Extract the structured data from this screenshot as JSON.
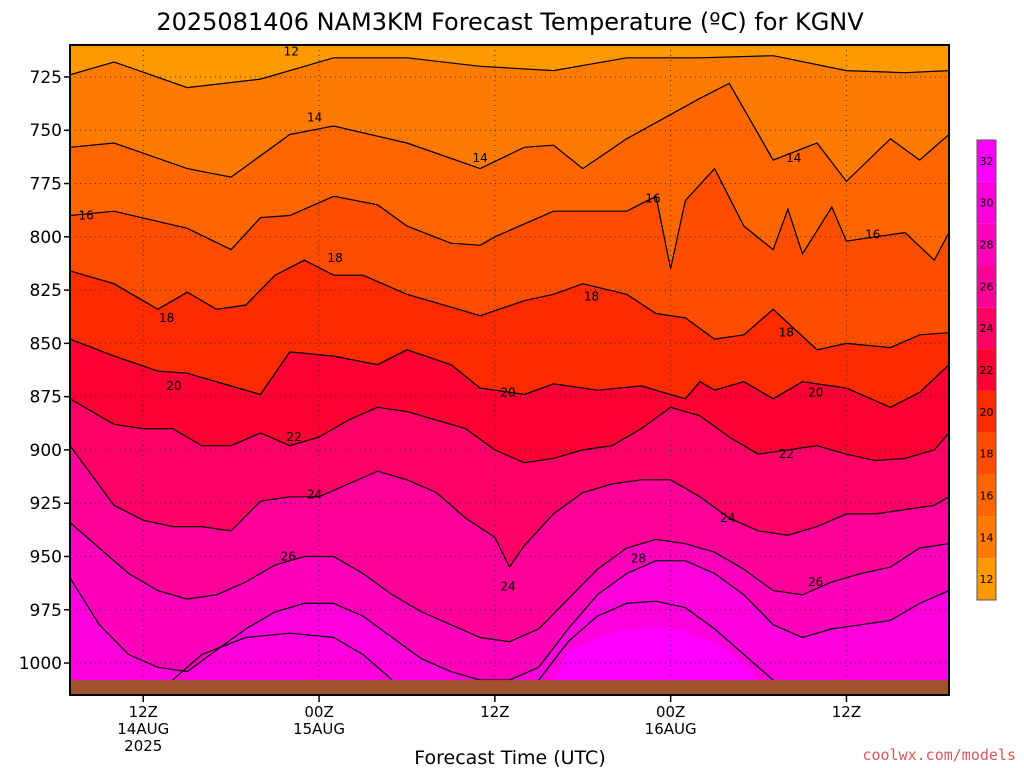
{
  "chart_data": {
    "type": "heatmap",
    "title": "2025081406 NAM3KM Forecast Temperature (ºC) for KGNV",
    "xlabel": "Forecast Time (UTC)",
    "ylabel": "",
    "y_axis": {
      "ticks": [
        725,
        750,
        775,
        800,
        825,
        850,
        875,
        900,
        925,
        950,
        975,
        1000
      ],
      "range": [
        710,
        1015
      ],
      "inverted": true,
      "gridlines": "dotted"
    },
    "x_axis": {
      "range_hours": [
        7,
        67
      ],
      "ticks": [
        {
          "hour": 12,
          "lines": [
            "12Z",
            "14AUG",
            "2025"
          ]
        },
        {
          "hour": 24,
          "lines": [
            "00Z",
            "15AUG"
          ]
        },
        {
          "hour": 36,
          "lines": [
            "12Z"
          ]
        },
        {
          "hour": 48,
          "lines": [
            "00Z",
            "16AUG"
          ]
        },
        {
          "hour": 60,
          "lines": [
            "12Z"
          ]
        }
      ],
      "gridlines": "dotted"
    },
    "colorbar": {
      "levels": [
        12,
        14,
        16,
        18,
        20,
        22,
        24,
        26,
        28,
        30,
        32
      ],
      "colors": [
        "#ff9900",
        "#ff7a00",
        "#ff6600",
        "#ff4d00",
        "#ff2a00",
        "#ff0033",
        "#ff0066",
        "#ff0099",
        "#ff00bb",
        "#ff00dd",
        "#ff00ff"
      ],
      "placement": "right"
    },
    "contours": [
      {
        "value": 12,
        "hours": [
          7,
          10,
          15,
          20,
          25,
          30,
          35,
          40,
          45,
          50,
          55,
          60,
          64,
          67
        ],
        "pressure": [
          724,
          718,
          730,
          726,
          716,
          716,
          720,
          722,
          716,
          716,
          715,
          722,
          723,
          722
        ],
        "labels": [
          {
            "text": "12",
            "hour": 22.1,
            "pressure": 713
          }
        ]
      },
      {
        "value": 14,
        "hours": [
          7,
          10,
          15,
          18,
          22,
          25,
          30,
          35,
          38,
          40,
          42,
          45,
          50,
          52,
          55,
          58,
          60,
          63,
          65,
          67
        ],
        "pressure": [
          758,
          756,
          768,
          772,
          752,
          748,
          756,
          768,
          758,
          757,
          768,
          754,
          735,
          728,
          764,
          756,
          774,
          754,
          764,
          752
        ],
        "labels": [
          {
            "text": "14",
            "hour": 23.7,
            "pressure": 744
          },
          {
            "text": "14",
            "hour": 35.0,
            "pressure": 763
          },
          {
            "text": "14",
            "hour": 56.4,
            "pressure": 763
          }
        ]
      },
      {
        "value": 16,
        "hours": [
          7,
          10,
          15,
          18,
          20,
          22,
          25,
          28,
          30,
          33,
          35,
          36,
          40,
          45,
          47,
          48,
          49,
          51,
          53,
          55,
          56,
          57,
          59,
          60,
          64,
          66,
          67
        ],
        "pressure": [
          790,
          788,
          796,
          806,
          791,
          790,
          781,
          785,
          795,
          803,
          804,
          800,
          788,
          788,
          781,
          815,
          783,
          768,
          795,
          806,
          787,
          808,
          786,
          802,
          798,
          811,
          798
        ],
        "labels": [
          {
            "text": "16",
            "hour": 8.1,
            "pressure": 790
          },
          {
            "text": "16",
            "hour": 46.8,
            "pressure": 782
          },
          {
            "text": "16",
            "hour": 61.8,
            "pressure": 799
          }
        ]
      },
      {
        "value": 18,
        "hours": [
          7,
          10,
          13,
          15,
          17,
          19,
          21,
          23,
          25,
          27,
          30,
          33,
          35,
          38,
          40,
          42,
          45,
          47,
          49,
          51,
          53,
          55,
          58,
          60,
          63,
          65,
          67
        ],
        "pressure": [
          816,
          822,
          834,
          826,
          834,
          832,
          818,
          811,
          818,
          818,
          827,
          833,
          837,
          830,
          827,
          822,
          827,
          836,
          838,
          848,
          846,
          834,
          853,
          850,
          852,
          846,
          845
        ],
        "labels": [
          {
            "text": "18",
            "hour": 13.6,
            "pressure": 838
          },
          {
            "text": "18",
            "hour": 25.1,
            "pressure": 810
          },
          {
            "text": "18",
            "hour": 42.6,
            "pressure": 828
          },
          {
            "text": "18",
            "hour": 55.9,
            "pressure": 845
          }
        ]
      },
      {
        "value": 20,
        "hours": [
          7,
          10,
          13,
          15,
          18,
          20,
          22,
          25,
          28,
          30,
          33,
          35,
          38,
          40,
          43,
          46,
          49,
          50,
          51,
          53,
          55,
          57,
          60,
          63,
          65,
          67
        ],
        "pressure": [
          848,
          856,
          863,
          864,
          870,
          874,
          854,
          856,
          860,
          853,
          860,
          871,
          874,
          869,
          872,
          870,
          876,
          868,
          872,
          868,
          876,
          868,
          871,
          880,
          873,
          860
        ],
        "labels": [
          {
            "text": "20",
            "hour": 14.1,
            "pressure": 870
          },
          {
            "text": "20",
            "hour": 36.9,
            "pressure": 873
          },
          {
            "text": "20",
            "hour": 57.9,
            "pressure": 873
          }
        ]
      },
      {
        "value": 22,
        "hours": [
          7,
          10,
          12,
          14,
          16,
          18,
          20,
          22,
          24,
          26,
          28,
          30,
          32,
          34,
          36,
          38,
          40,
          42,
          44,
          46,
          48,
          50,
          52,
          54,
          56,
          58,
          60,
          62,
          64,
          66,
          67
        ],
        "pressure": [
          876,
          888,
          890,
          890,
          898,
          898,
          892,
          898,
          894,
          886,
          880,
          882,
          886,
          890,
          900,
          906,
          904,
          900,
          898,
          890,
          880,
          884,
          894,
          902,
          900,
          898,
          902,
          905,
          904,
          900,
          892
        ],
        "labels": [
          {
            "text": "22",
            "hour": 22.3,
            "pressure": 894
          },
          {
            "text": "22",
            "hour": 55.9,
            "pressure": 902
          }
        ]
      },
      {
        "value": 24,
        "hours": [
          7,
          10,
          12,
          14,
          16,
          18,
          20,
          22,
          24,
          26,
          28,
          30,
          32,
          34,
          36,
          37,
          38,
          40,
          42,
          44,
          46,
          48,
          50,
          52,
          54,
          56,
          58,
          60,
          62,
          64,
          66,
          67
        ],
        "pressure": [
          898,
          926,
          933,
          936,
          936,
          938,
          924,
          922,
          922,
          916,
          910,
          914,
          920,
          932,
          941,
          955,
          945,
          930,
          920,
          916,
          914,
          914,
          922,
          932,
          938,
          940,
          936,
          930,
          930,
          928,
          926,
          922
        ],
        "labels": [
          {
            "text": "24",
            "hour": 23.7,
            "pressure": 921
          },
          {
            "text": "24",
            "hour": 36.9,
            "pressure": 964
          },
          {
            "text": "24",
            "hour": 51.9,
            "pressure": 932
          }
        ]
      },
      {
        "value": 26,
        "hours": [
          7,
          9,
          11,
          13,
          15,
          17,
          19,
          21,
          23,
          25,
          27,
          29,
          31,
          33,
          35,
          37,
          39,
          41,
          43,
          45,
          47,
          49,
          51,
          53,
          55,
          57,
          59,
          61,
          63,
          65,
          67
        ],
        "pressure": [
          934,
          946,
          958,
          966,
          970,
          968,
          962,
          954,
          950,
          950,
          958,
          968,
          976,
          982,
          988,
          990,
          984,
          970,
          956,
          946,
          942,
          944,
          948,
          956,
          966,
          968,
          962,
          958,
          955,
          946,
          944
        ],
        "labels": [
          {
            "text": "26",
            "hour": 21.9,
            "pressure": 950
          },
          {
            "text": "26",
            "hour": 57.9,
            "pressure": 962
          }
        ]
      },
      {
        "value": 28,
        "hours": [
          7,
          9,
          11,
          13,
          15,
          17,
          19,
          21,
          23,
          25,
          27,
          29,
          31,
          33,
          35,
          37,
          39,
          41,
          43,
          45,
          47,
          49,
          51,
          53,
          55,
          57,
          59,
          61,
          63,
          65,
          67
        ],
        "pressure": [
          960,
          982,
          996,
          1002,
          1004,
          994,
          984,
          976,
          972,
          972,
          978,
          988,
          998,
          1004,
          1008,
          1008,
          1002,
          984,
          968,
          958,
          952,
          952,
          958,
          968,
          982,
          988,
          984,
          982,
          980,
          972,
          966
        ],
        "labels": [
          {
            "text": "28",
            "hour": 45.8,
            "pressure": 951
          }
        ]
      }
    ],
    "ground": {
      "pressure_top": 1008,
      "color": "#a0522d"
    },
    "credit": "coolwx.com/models"
  }
}
